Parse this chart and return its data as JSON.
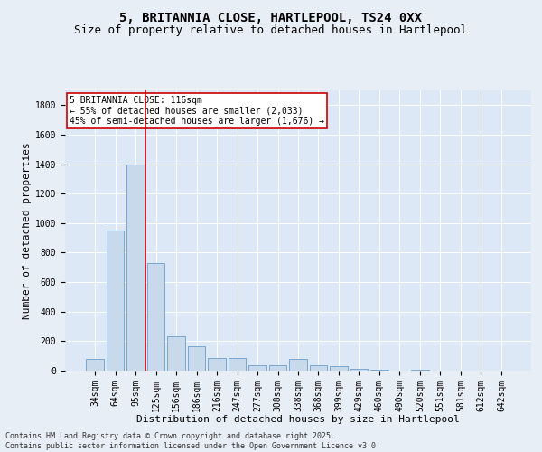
{
  "title1": "5, BRITANNIA CLOSE, HARTLEPOOL, TS24 0XX",
  "title2": "Size of property relative to detached houses in Hartlepool",
  "xlabel": "Distribution of detached houses by size in Hartlepool",
  "ylabel": "Number of detached properties",
  "bar_labels": [
    "34sqm",
    "64sqm",
    "95sqm",
    "125sqm",
    "156sqm",
    "186sqm",
    "216sqm",
    "247sqm",
    "277sqm",
    "308sqm",
    "338sqm",
    "368sqm",
    "399sqm",
    "429sqm",
    "460sqm",
    "490sqm",
    "520sqm",
    "551sqm",
    "581sqm",
    "612sqm",
    "642sqm"
  ],
  "bar_values": [
    80,
    950,
    1400,
    730,
    230,
    165,
    85,
    85,
    35,
    35,
    80,
    35,
    30,
    10,
    5,
    0,
    5,
    0,
    0,
    0,
    0
  ],
  "bar_color": "#c9d9ec",
  "bar_edge_color": "#6a9ecb",
  "vline_color": "#cc0000",
  "vline_pos": 2.5,
  "ylim": [
    0,
    1900
  ],
  "yticks": [
    0,
    200,
    400,
    600,
    800,
    1000,
    1200,
    1400,
    1600,
    1800
  ],
  "annotation_box_text": "5 BRITANNIA CLOSE: 116sqm\n← 55% of detached houses are smaller (2,033)\n45% of semi-detached houses are larger (1,676) →",
  "annotation_box_color": "#cc0000",
  "annotation_box_fill": "#ffffff",
  "footer1": "Contains HM Land Registry data © Crown copyright and database right 2025.",
  "footer2": "Contains public sector information licensed under the Open Government Licence v3.0.",
  "bg_color": "#e8eef5",
  "plot_bg_color": "#dce8f5",
  "grid_color": "#ffffff",
  "title_fontsize": 10,
  "subtitle_fontsize": 9,
  "tick_fontsize": 7,
  "ylabel_fontsize": 8,
  "xlabel_fontsize": 8,
  "ann_fontsize": 7,
  "footer_fontsize": 6
}
